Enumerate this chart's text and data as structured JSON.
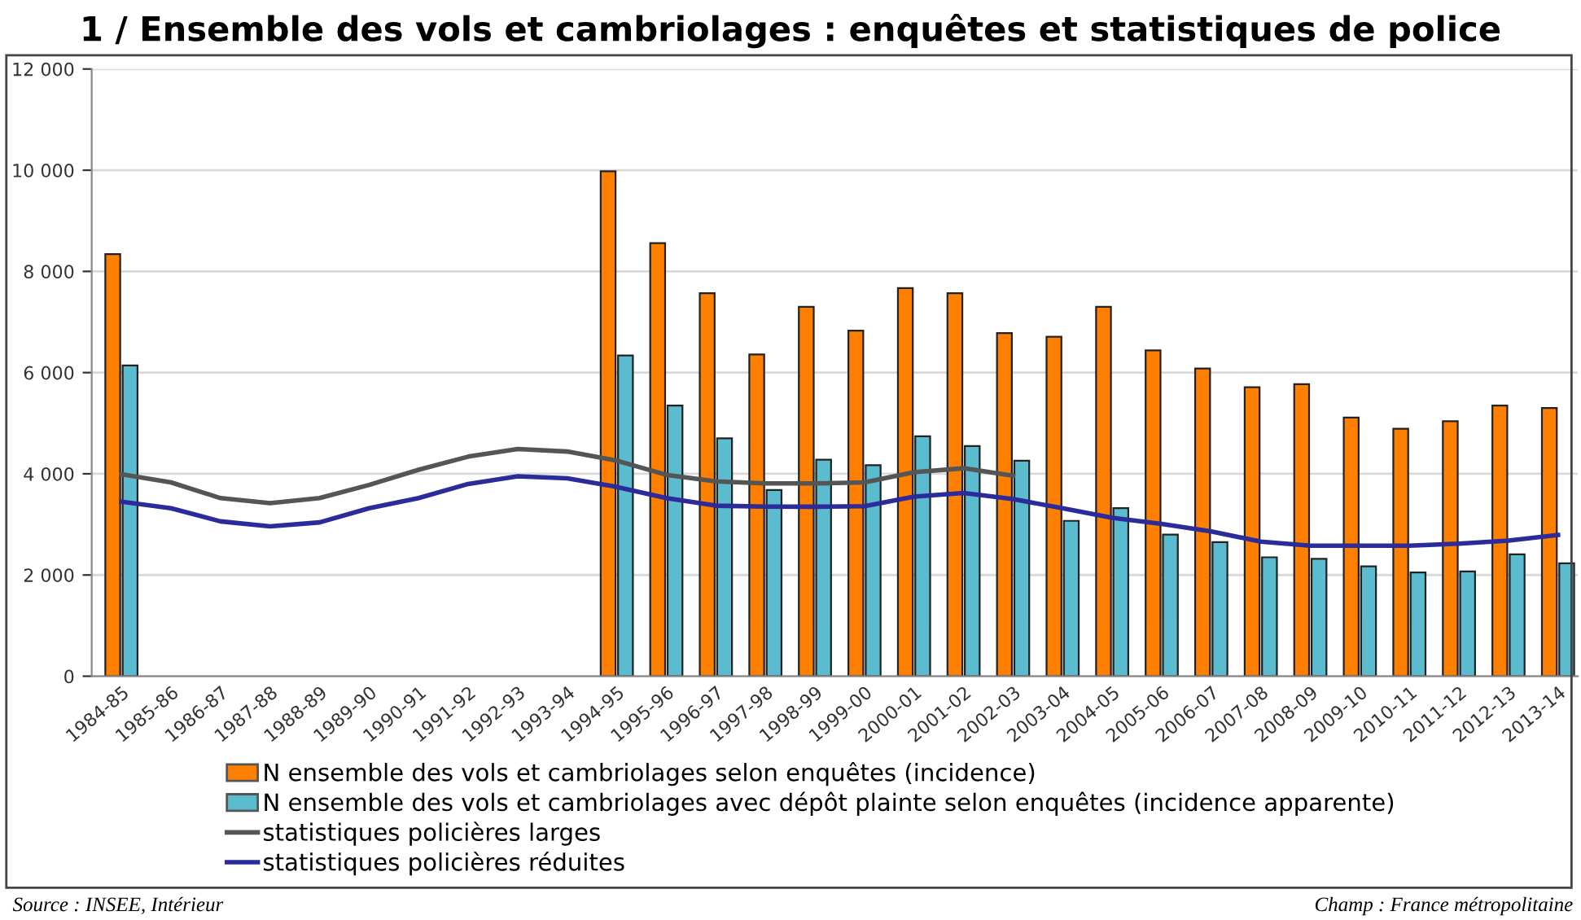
{
  "chart_data": {
    "type": "bar",
    "title": "1 / Ensemble des vols et cambriolages : enquêtes et statistiques de police",
    "categories": [
      "1984-85",
      "1985-86",
      "1986-87",
      "1987-88",
      "1988-89",
      "1989-90",
      "1990-91",
      "1991-92",
      "1992-93",
      "1993-94",
      "1994-95",
      "1995-96",
      "1996-97",
      "1997-98",
      "1998-99",
      "1999-00",
      "2000-01",
      "2001-02",
      "2002-03",
      "2003-04",
      "2004-05",
      "2005-06",
      "2006-07",
      "2007-08",
      "2008-09",
      "2009-10",
      "2010-11",
      "2011-12",
      "2012-13",
      "2013-14"
    ],
    "series": [
      {
        "name": "N ensemble des vols et cambriolages selon enquêtes (incidence)",
        "color": "#ff8000",
        "values": [
          8340,
          null,
          null,
          null,
          null,
          null,
          null,
          null,
          null,
          null,
          9980,
          8560,
          7570,
          6360,
          7300,
          6830,
          7670,
          7570,
          6780,
          6710,
          7300,
          6440,
          6080,
          5710,
          5770,
          5110,
          4890,
          5040,
          5350,
          5300
        ]
      },
      {
        "name": "N ensemble des vols et cambriolages avec dépôt plainte selon enquêtes (incidence apparente)",
        "color": "#5bbccf",
        "values": [
          6140,
          null,
          null,
          null,
          null,
          null,
          null,
          null,
          null,
          null,
          6340,
          5350,
          4700,
          3680,
          4280,
          4170,
          4740,
          4550,
          4260,
          3070,
          3320,
          2800,
          2650,
          2350,
          2320,
          2170,
          2050,
          2070,
          2410,
          2230
        ]
      },
      {
        "name": "statistiques policières larges",
        "type": "line",
        "color": "#555555",
        "values": [
          3990,
          3830,
          3520,
          3420,
          3520,
          3780,
          4080,
          4340,
          4490,
          4440,
          4260,
          3980,
          3850,
          3810,
          3810,
          3830,
          4030,
          4110,
          3960,
          null,
          null,
          null,
          null,
          null,
          null,
          null,
          null,
          null,
          null,
          null
        ]
      },
      {
        "name": "statistiques policières réduites",
        "type": "line",
        "color": "#2b2b9b",
        "values": [
          3450,
          3320,
          3060,
          2960,
          3040,
          3320,
          3520,
          3800,
          3950,
          3910,
          3740,
          3520,
          3370,
          3350,
          3350,
          3360,
          3550,
          3620,
          3500,
          3320,
          3130,
          3010,
          2860,
          2660,
          2580,
          2580,
          2580,
          2620,
          2680,
          2790
        ]
      }
    ],
    "ylim": [
      0,
      12000
    ],
    "yticks": [
      0,
      {
        "value": 2000,
        "label": "2 000"
      },
      {
        "value": 4000,
        "label": "4 000"
      },
      {
        "value": 6000,
        "label": "6 000"
      },
      {
        "value": 8000,
        "label": "8 000"
      },
      {
        "value": 10000,
        "label": "10 000"
      },
      {
        "value": 12000,
        "label": "12 000"
      }
    ],
    "grid": "y",
    "legend": "bottom",
    "marker": "none",
    "line_style": "solid",
    "annotations": [
      "Source : INSEE, Intérieur",
      "Champ : France métropolitaine"
    ]
  }
}
